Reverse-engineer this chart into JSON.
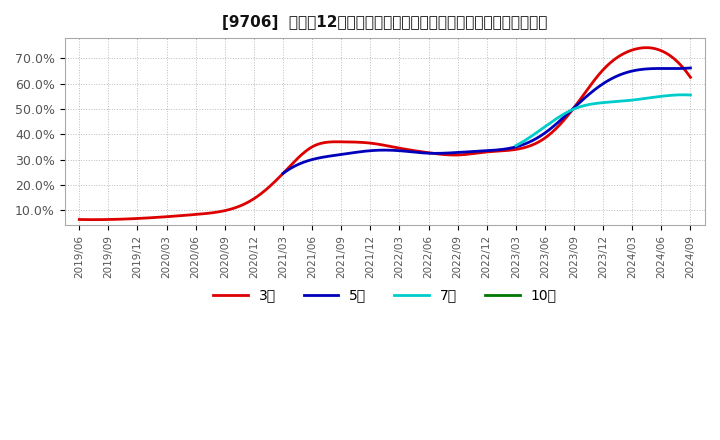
{
  "title": "[9706]  売上高12か月移動合計の対前年同期増減率の標準偏差の推移",
  "background_color": "#ffffff",
  "plot_bg_color": "#ffffff",
  "grid_color": "#bbbbbb",
  "line_3y_color": "#dd0000",
  "line_5y_color": "#0000bb",
  "line_7y_color": "#00cccc",
  "line_10y_color": "#007700",
  "legend_labels": [
    "3年",
    "5年",
    "7年",
    "10年"
  ],
  "ylim": [
    0.04,
    0.78
  ],
  "yticks": [
    0.1,
    0.2,
    0.3,
    0.4,
    0.5,
    0.6,
    0.7
  ],
  "ytick_labels": [
    "10.0%",
    "20.0%",
    "30.0%",
    "40.0%",
    "50.0%",
    "60.0%",
    "70.0%"
  ],
  "x_ticks": [
    "2019/06",
    "2019/09",
    "2019/12",
    "2020/03",
    "2020/06",
    "2020/09",
    "2020/12",
    "2021/03",
    "2021/06",
    "2021/09",
    "2021/12",
    "2022/03",
    "2022/06",
    "2022/09",
    "2022/12",
    "2023/03",
    "2023/06",
    "2023/09",
    "2023/12",
    "2024/03",
    "2024/06",
    "2024/09"
  ],
  "series_3y_x": [
    0,
    1,
    2,
    3,
    4,
    5,
    6,
    7,
    8,
    9,
    10,
    11,
    12,
    13,
    14,
    15,
    16,
    17,
    18,
    19,
    20,
    21
  ],
  "series_3y_y": [
    0.063,
    0.063,
    0.067,
    0.074,
    0.083,
    0.098,
    0.145,
    0.245,
    0.35,
    0.37,
    0.365,
    0.345,
    0.327,
    0.318,
    0.33,
    0.34,
    0.385,
    0.505,
    0.655,
    0.733,
    0.73,
    0.625
  ],
  "series_5y_x": [
    7,
    8,
    9,
    10,
    11,
    12,
    13,
    14,
    15,
    16,
    17,
    18,
    19,
    20,
    21
  ],
  "series_5y_y": [
    0.245,
    0.3,
    0.32,
    0.335,
    0.335,
    0.325,
    0.328,
    0.335,
    0.35,
    0.405,
    0.505,
    0.6,
    0.65,
    0.66,
    0.662
  ],
  "series_7y_x": [
    15,
    16,
    17,
    18,
    19,
    20,
    21
  ],
  "series_7y_y": [
    0.355,
    0.43,
    0.5,
    0.525,
    0.535,
    0.55,
    0.555
  ],
  "series_10y_x": [],
  "series_10y_y": [],
  "line_width": 2.0,
  "title_fontsize": 11
}
